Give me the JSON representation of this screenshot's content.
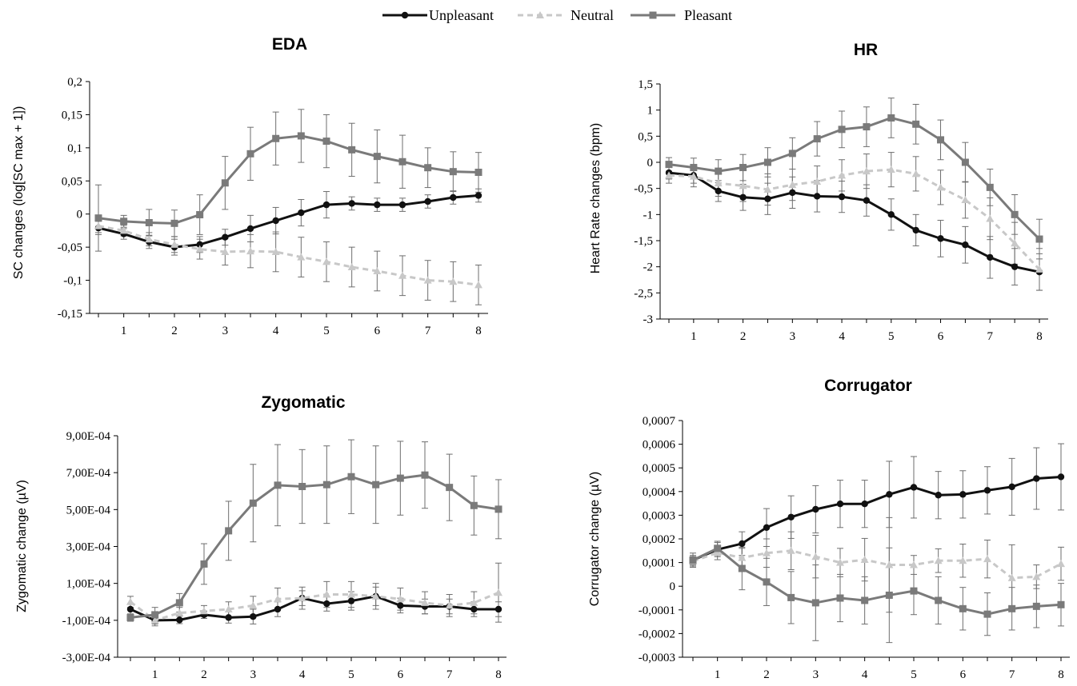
{
  "legend": {
    "items": [
      {
        "label": "Unpleasant",
        "color": "#111111",
        "marker": "circle",
        "dash": ""
      },
      {
        "label": "Neutral",
        "color": "#c8c8c8",
        "marker": "triangle",
        "dash": "7,5"
      },
      {
        "label": "Pleasant",
        "color": "#7a7a7a",
        "marker": "square",
        "dash": ""
      }
    ]
  },
  "chart_data": [
    {
      "type": "line",
      "title": "EDA",
      "ylabel": "SC changes (log[SC max + 1])",
      "ylim": [
        -0.15,
        0.2
      ],
      "yticks": [
        "-0,15",
        "-0,1",
        "-0,05",
        "0",
        "0,05",
        "0,1",
        "0,15",
        "0,2"
      ],
      "xticks": [
        "1",
        "2",
        "3",
        "4",
        "5",
        "6",
        "7",
        "8"
      ],
      "x": [
        0.5,
        1,
        1.5,
        2,
        2.5,
        3,
        3.5,
        4,
        4.5,
        5,
        5.5,
        6,
        6.5,
        7,
        7.5,
        8
      ],
      "series": [
        {
          "name": "Unpleasant",
          "values": [
            -0.021,
            -0.03,
            -0.042,
            -0.05,
            -0.046,
            -0.035,
            -0.022,
            -0.01,
            0.002,
            0.014,
            0.016,
            0.014,
            0.014,
            0.019,
            0.025,
            0.028
          ],
          "errors": [
            0.01,
            0.008,
            0.01,
            0.012,
            0.012,
            0.012,
            0.02,
            0.02,
            0.02,
            0.02,
            0.01,
            0.01,
            0.01,
            0.01,
            0.01,
            0.01
          ]
        },
        {
          "name": "Neutral",
          "values": [
            -0.018,
            -0.025,
            -0.038,
            -0.046,
            -0.053,
            -0.057,
            -0.056,
            -0.057,
            -0.065,
            -0.072,
            -0.08,
            -0.086,
            -0.093,
            -0.1,
            -0.102,
            -0.107
          ],
          "errors": [
            0.01,
            0.008,
            0.01,
            0.012,
            0.015,
            0.02,
            0.025,
            0.03,
            0.03,
            0.03,
            0.03,
            0.03,
            0.03,
            0.03,
            0.03,
            0.03
          ]
        },
        {
          "name": "Pleasant",
          "values": [
            -0.006,
            -0.011,
            -0.013,
            -0.014,
            -0.001,
            0.047,
            0.091,
            0.114,
            0.118,
            0.11,
            0.097,
            0.087,
            0.079,
            0.07,
            0.064,
            0.063
          ],
          "errors": [
            0.05,
            0.009,
            0.02,
            0.02,
            0.03,
            0.04,
            0.04,
            0.04,
            0.04,
            0.04,
            0.04,
            0.04,
            0.04,
            0.03,
            0.03,
            0.03
          ]
        }
      ]
    },
    {
      "type": "line",
      "title": "HR",
      "ylabel": "Heart Rate changes (bpm)",
      "ylim": [
        -3,
        1.5
      ],
      "yticks": [
        "-3",
        "-2,5",
        "-2",
        "-1,5",
        "-1",
        "-0,5",
        "0",
        "0,5",
        "1",
        "1,5"
      ],
      "xticks": [
        "1",
        "2",
        "3",
        "4",
        "5",
        "6",
        "7",
        "8"
      ],
      "x": [
        0.5,
        1,
        1.5,
        2,
        2.5,
        3,
        3.5,
        4,
        4.5,
        5,
        5.5,
        6,
        6.5,
        7,
        7.5,
        8
      ],
      "series": [
        {
          "name": "Unpleasant",
          "values": [
            -0.2,
            -0.25,
            -0.55,
            -0.67,
            -0.7,
            -0.58,
            -0.65,
            -0.66,
            -0.73,
            -1.0,
            -1.3,
            -1.46,
            -1.58,
            -1.82,
            -2.0,
            -2.1
          ],
          "errors": [
            0.12,
            0.15,
            0.2,
            0.25,
            0.3,
            0.3,
            0.3,
            0.3,
            0.3,
            0.3,
            0.3,
            0.35,
            0.35,
            0.4,
            0.35,
            0.35
          ]
        },
        {
          "name": "Neutral",
          "values": [
            -0.25,
            -0.27,
            -0.4,
            -0.45,
            -0.52,
            -0.43,
            -0.37,
            -0.25,
            -0.17,
            -0.14,
            -0.22,
            -0.48,
            -0.72,
            -1.08,
            -1.55,
            -2.05
          ],
          "errors": [
            0.15,
            0.2,
            0.25,
            0.3,
            0.3,
            0.3,
            0.3,
            0.3,
            0.33,
            0.33,
            0.33,
            0.33,
            0.35,
            0.4,
            0.4,
            0.4
          ]
        },
        {
          "name": "Pleasant",
          "values": [
            -0.04,
            -0.1,
            -0.17,
            -0.1,
            0.0,
            0.17,
            0.45,
            0.63,
            0.68,
            0.85,
            0.73,
            0.43,
            0.0,
            -0.48,
            -1.0,
            -1.47
          ],
          "errors": [
            0.13,
            0.18,
            0.22,
            0.25,
            0.28,
            0.3,
            0.33,
            0.35,
            0.38,
            0.38,
            0.38,
            0.38,
            0.38,
            0.35,
            0.38,
            0.38
          ]
        }
      ]
    },
    {
      "type": "line",
      "title": "Zygomatic",
      "ylabel": "Zygomatic change (µV)",
      "ylim": [
        -0.0003,
        0.0009
      ],
      "yticks": [
        "-3,00E-04",
        "-1,00E-04",
        "1,00E-04",
        "3,00E-04",
        "5,00E-04",
        "7,00E-04",
        "9,00E-04"
      ],
      "xticks": [
        "1",
        "2",
        "3",
        "4",
        "5",
        "6",
        "7",
        "8"
      ],
      "x": [
        0.5,
        1,
        1.5,
        2,
        2.5,
        3,
        3.5,
        4,
        4.5,
        5,
        5.5,
        6,
        6.5,
        7,
        7.5,
        8
      ],
      "series": [
        {
          "name": "Unpleasant",
          "values": [
            -4e-05,
            -0.0001,
            -9.8e-05,
            -7e-05,
            -8.5e-05,
            -8e-05,
            -4e-05,
            2e-05,
            -1e-05,
            5e-06,
            3e-05,
            -2e-05,
            -2.5e-05,
            -2.5e-05,
            -4e-05,
            -4e-05
          ],
          "errors": [
            3e-05,
            2e-05,
            2e-05,
            2e-05,
            3e-05,
            4e-05,
            4e-05,
            4e-05,
            4e-05,
            5e-05,
            5e-05,
            4e-05,
            4e-05,
            4e-05,
            4e-05,
            4e-05
          ]
        },
        {
          "name": "Neutral",
          "values": [
            0.0,
            -0.0001,
            -6e-05,
            -5e-05,
            -4e-05,
            -2e-05,
            1.5e-05,
            2e-05,
            4e-05,
            4e-05,
            3e-05,
            1.5e-05,
            -5e-06,
            -2e-05,
            -5e-06,
            5e-05
          ],
          "errors": [
            3e-05,
            3e-05,
            3e-05,
            3e-05,
            4e-05,
            5e-05,
            6e-05,
            6e-05,
            7e-05,
            7e-05,
            7e-05,
            6e-05,
            6e-05,
            6e-05,
            6e-05,
            0.00016
          ]
        },
        {
          "name": "Pleasant",
          "values": [
            -8.5e-05,
            -7e-05,
            -5e-06,
            0.000205,
            0.000385,
            0.000535,
            0.000632,
            0.000625,
            0.000635,
            0.000678,
            0.000635,
            0.00067,
            0.000687,
            0.00062,
            0.000522,
            0.000502
          ],
          "errors": [
            2e-05,
            4e-05,
            5e-05,
            0.00011,
            0.00016,
            0.00021,
            0.00022,
            0.0002,
            0.00021,
            0.0002,
            0.00021,
            0.0002,
            0.00018,
            0.00018,
            0.00016,
            0.00016
          ]
        }
      ]
    },
    {
      "type": "line",
      "title": "Corrugator",
      "ylabel": "Corrugator change (µV)",
      "ylim": [
        -0.0003,
        0.0007
      ],
      "yticks": [
        "-0,0003",
        "-0,0002",
        "-0,0001",
        "0",
        "0,0001",
        "0,0002",
        "0,0003",
        "0,0004",
        "0,0005",
        "0,0006",
        "0,0007"
      ],
      "xticks": [
        "1",
        "2",
        "3",
        "4",
        "5",
        "6",
        "7",
        "8"
      ],
      "x": [
        0.5,
        1,
        1.5,
        2,
        2.5,
        3,
        3.5,
        4,
        4.5,
        5,
        5.5,
        6,
        6.5,
        7,
        7.5,
        8
      ],
      "series": [
        {
          "name": "Unpleasant",
          "values": [
            0.00011,
            0.000155,
            0.00018,
            0.000248,
            0.000292,
            0.000325,
            0.000348,
            0.000348,
            0.000388,
            0.000418,
            0.000385,
            0.000388,
            0.000405,
            0.00042,
            0.000455,
            0.000462
          ],
          "errors": [
            2e-05,
            3e-05,
            5e-05,
            8e-05,
            9e-05,
            0.0001,
            0.0001,
            0.0001,
            0.00014,
            0.00013,
            0.0001,
            0.0001,
            0.0001,
            0.00012,
            0.00013,
            0.00014
          ]
        },
        {
          "name": "Neutral",
          "values": [
            0.000105,
            0.000142,
            0.00012,
            0.00014,
            0.00015,
            0.000125,
            0.0001,
            0.000112,
            9e-05,
            9e-05,
            0.000108,
            0.000108,
            0.000115,
            3.5e-05,
            4e-05,
            9.5e-05
          ],
          "errors": [
            2e-05,
            3e-05,
            4e-05,
            6e-05,
            8e-05,
            9e-05,
            6e-05,
            9e-05,
            0.0002,
            4e-05,
            5e-05,
            7e-05,
            8e-05,
            0.00014,
            5e-05,
            7e-05
          ]
        },
        {
          "name": "Pleasant",
          "values": [
            0.00011,
            0.00016,
            7.5e-05,
            1.8e-05,
            -4.8e-05,
            -7e-05,
            -5e-05,
            -6e-05,
            -3.8e-05,
            -2e-05,
            -6e-05,
            -9.5e-05,
            -0.000118,
            -9.5e-05,
            -8.5e-05,
            -7.8e-05
          ],
          "errors": [
            3e-05,
            3e-05,
            9e-05,
            0.0001,
            0.00011,
            0.00016,
            0.0001,
            0.0001,
            0.0002,
            0.0001,
            0.0001,
            9e-05,
            9e-05,
            9e-05,
            9e-05,
            9e-05
          ]
        }
      ]
    }
  ]
}
